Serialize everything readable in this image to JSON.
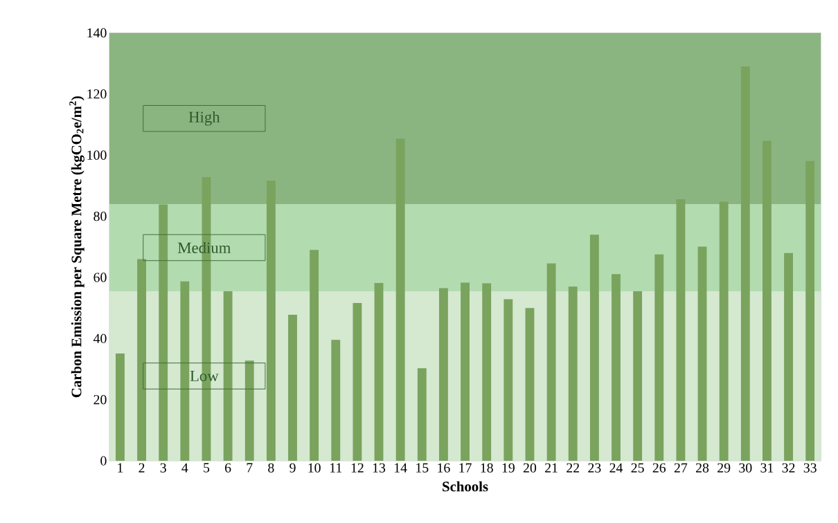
{
  "chart_data": {
    "type": "bar",
    "xlabel": "Schools",
    "ylabel": "Carbon Emission per Square Metre (kgCO$_{2}$e/m$^{2}$)",
    "categories": [
      "1",
      "2",
      "3",
      "4",
      "5",
      "6",
      "7",
      "8",
      "9",
      "10",
      "11",
      "12",
      "13",
      "14",
      "15",
      "16",
      "17",
      "18",
      "19",
      "20",
      "21",
      "22",
      "23",
      "24",
      "25",
      "26",
      "27",
      "28",
      "29",
      "30",
      "31",
      "32",
      "33"
    ],
    "values": [
      35.1,
      66.0,
      83.9,
      58.7,
      92.8,
      55.5,
      32.8,
      91.7,
      47.8,
      69.0,
      39.6,
      51.6,
      58.2,
      105.4,
      30.3,
      56.5,
      58.3,
      58.1,
      52.9,
      50.0,
      64.6,
      57.0,
      74.0,
      61.1,
      55.5,
      67.5,
      85.6,
      70.1,
      84.8,
      129.0,
      104.7,
      68.0,
      98.1
    ],
    "color": "#7aa35e",
    "ylim": [
      0,
      140
    ],
    "yticks": [
      0,
      20,
      40,
      60,
      80,
      100,
      120,
      140
    ],
    "bands": [
      {
        "axis": "y",
        "from": 0,
        "to": 55.5,
        "label": "Low",
        "color": "#d5e8d0"
      },
      {
        "axis": "y",
        "from": 55.5,
        "to": 84,
        "label": "Medium",
        "color": "#b3dbb0"
      },
      {
        "axis": "y",
        "from": 84,
        "to": 140,
        "label": "High",
        "color": "#8bb580"
      }
    ],
    "grid": false
  }
}
